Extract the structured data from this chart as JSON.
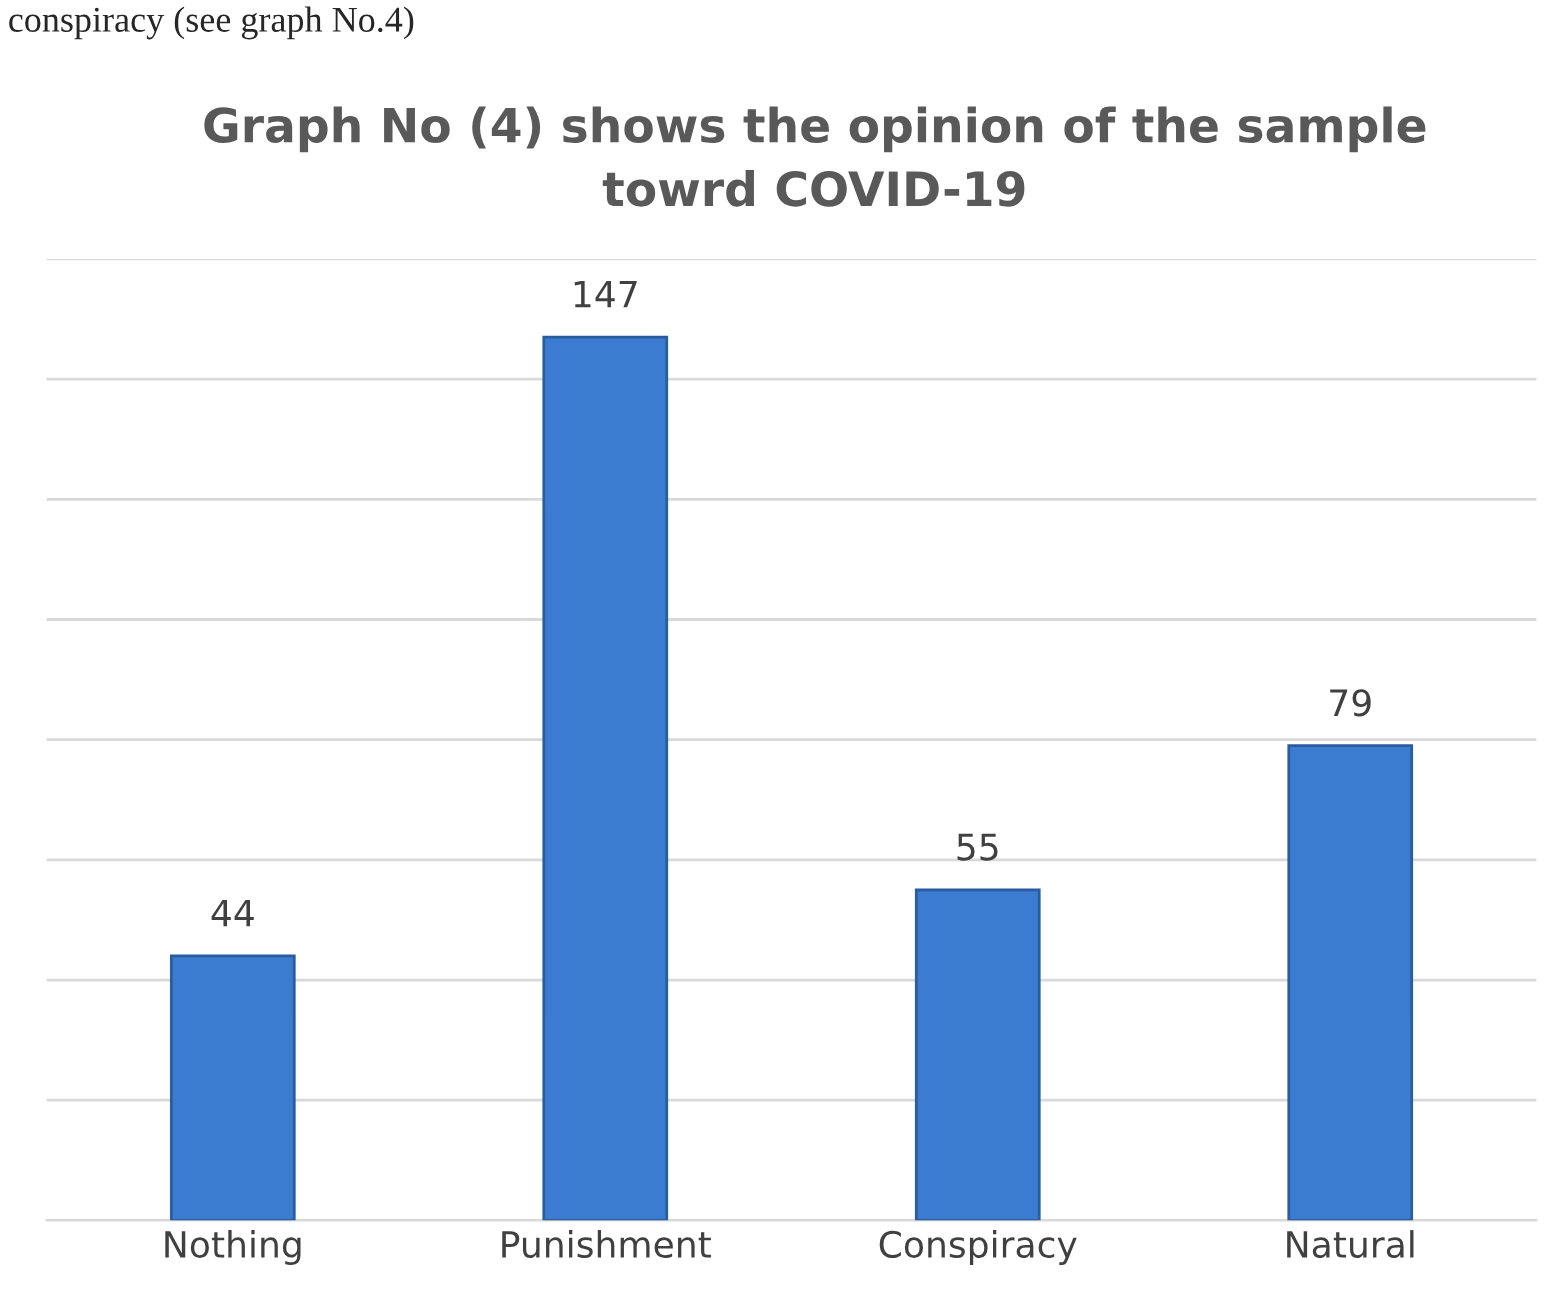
{
  "chart_data": {
    "type": "bar",
    "title": "Graph No (4) shows the opinion of the sample\ntowrd COVID-19",
    "annotations": [
      "conspiracy (see graph No.4)"
    ],
    "categories": [
      "Nothing",
      "Punishment",
      "Conspiracy",
      "Natural"
    ],
    "values": [
      44,
      147,
      55,
      79
    ],
    "color": "#3b7bd0",
    "ylim": [
      0,
      160
    ],
    "yticks": [
      {
        "value": 0,
        "label": null
      },
      {
        "value": 20,
        "label": null
      },
      {
        "value": 40,
        "label": null
      },
      {
        "value": 60,
        "label": null
      },
      {
        "value": 80,
        "label": null
      },
      {
        "value": 100,
        "label": null
      },
      {
        "value": 120,
        "label": null
      },
      {
        "value": 140,
        "label": null
      },
      {
        "value": 160,
        "label": null
      }
    ],
    "grid": "y",
    "data_labels": true,
    "tick_labels": "x",
    "legend": false
  }
}
